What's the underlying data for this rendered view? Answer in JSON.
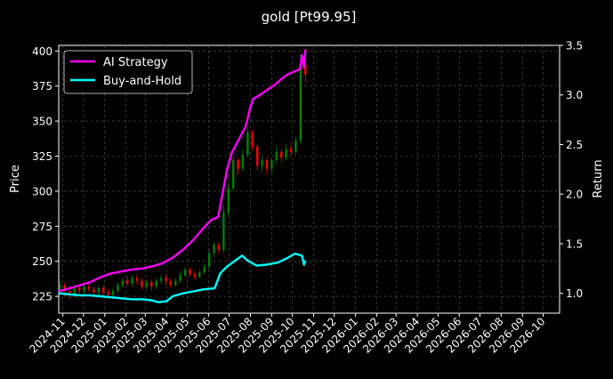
{
  "chart_data": {
    "type": "line",
    "title": "gold [Pt99.95]",
    "xlabel": "",
    "ylabel": "Price",
    "y2label": "Return",
    "grid": true,
    "legend_position": "top-left",
    "ylim": [
      213,
      404
    ],
    "y2lim": [
      0.8,
      3.5
    ],
    "x_range": [
      "2024-10-26",
      "2026-10-25"
    ],
    "y_ticks": [
      "225",
      "250",
      "275",
      "300",
      "325",
      "350",
      "375",
      "400"
    ],
    "y2_ticks": [
      "1.0",
      "1.5",
      "2.0",
      "2.5",
      "3.0",
      "3.5"
    ],
    "x_ticks": [
      "2024-11",
      "2024-12",
      "2025-01",
      "2025-02",
      "2025-03",
      "2025-04",
      "2025-05",
      "2025-06",
      "2025-07",
      "2025-08",
      "2025-09",
      "2025-10",
      "2025-11",
      "2025-12",
      "2026-01",
      "2026-02",
      "2026-03",
      "2026-04",
      "2026-05",
      "2026-06",
      "2026-07",
      "2026-08",
      "2026-09",
      "2026-10"
    ],
    "colors": {
      "ai": "#ff00ff",
      "bh": "#00ffff",
      "up": "#008000",
      "down": "#ff0000"
    },
    "series": [
      {
        "name": "AI Strategy",
        "axis": "right",
        "color": "#ff00ff",
        "points": [
          [
            "2024-10-26",
            1.02
          ],
          [
            "2024-11-10",
            1.05
          ],
          [
            "2024-11-25",
            1.08
          ],
          [
            "2024-12-10",
            1.11
          ],
          [
            "2024-12-25",
            1.16
          ],
          [
            "2025-01-10",
            1.2
          ],
          [
            "2025-01-25",
            1.22
          ],
          [
            "2025-02-10",
            1.24
          ],
          [
            "2025-02-25",
            1.25
          ],
          [
            "2025-03-10",
            1.27
          ],
          [
            "2025-03-25",
            1.3
          ],
          [
            "2025-04-10",
            1.36
          ],
          [
            "2025-04-25",
            1.44
          ],
          [
            "2025-05-10",
            1.54
          ],
          [
            "2025-05-25",
            1.66
          ],
          [
            "2025-06-05",
            1.74
          ],
          [
            "2025-06-15",
            1.77
          ],
          [
            "2025-06-20",
            1.95
          ],
          [
            "2025-06-28",
            2.25
          ],
          [
            "2025-07-05",
            2.42
          ],
          [
            "2025-07-15",
            2.55
          ],
          [
            "2025-07-25",
            2.68
          ],
          [
            "2025-08-01",
            2.88
          ],
          [
            "2025-08-05",
            2.96
          ],
          [
            "2025-08-15",
            3.0
          ],
          [
            "2025-08-25",
            3.05
          ],
          [
            "2025-09-05",
            3.1
          ],
          [
            "2025-09-15",
            3.16
          ],
          [
            "2025-09-25",
            3.21
          ],
          [
            "2025-10-05",
            3.24
          ],
          [
            "2025-10-12",
            3.26
          ],
          [
            "2025-10-15",
            3.4
          ],
          [
            "2025-10-18",
            3.28
          ],
          [
            "2025-10-20",
            3.46
          ]
        ]
      },
      {
        "name": "Buy-and-Hold",
        "axis": "right",
        "color": "#00ffff",
        "points": [
          [
            "2024-10-26",
            1.0
          ],
          [
            "2024-11-10",
            0.99
          ],
          [
            "2024-11-25",
            0.98
          ],
          [
            "2024-12-10",
            0.98
          ],
          [
            "2024-12-25",
            0.97
          ],
          [
            "2025-01-10",
            0.96
          ],
          [
            "2025-01-25",
            0.95
          ],
          [
            "2025-02-10",
            0.94
          ],
          [
            "2025-02-25",
            0.94
          ],
          [
            "2025-03-10",
            0.93
          ],
          [
            "2025-03-20",
            0.91
          ],
          [
            "2025-04-01",
            0.92
          ],
          [
            "2025-04-10",
            0.97
          ],
          [
            "2025-04-25",
            1.0
          ],
          [
            "2025-05-10",
            1.02
          ],
          [
            "2025-05-25",
            1.04
          ],
          [
            "2025-06-10",
            1.05
          ],
          [
            "2025-06-18",
            1.2
          ],
          [
            "2025-06-28",
            1.27
          ],
          [
            "2025-07-10",
            1.33
          ],
          [
            "2025-07-20",
            1.38
          ],
          [
            "2025-07-28",
            1.33
          ],
          [
            "2025-08-10",
            1.28
          ],
          [
            "2025-08-25",
            1.29
          ],
          [
            "2025-09-10",
            1.31
          ],
          [
            "2025-09-25",
            1.36
          ],
          [
            "2025-10-05",
            1.4
          ],
          [
            "2025-10-15",
            1.38
          ],
          [
            "2025-10-18",
            1.29
          ],
          [
            "2025-10-20",
            1.33
          ]
        ]
      }
    ],
    "candles": [
      [
        "2024-10-28",
        230,
        233,
        227,
        236
      ],
      [
        "2024-11-04",
        233,
        229,
        225,
        235
      ],
      [
        "2024-11-11",
        229,
        226,
        223,
        232
      ],
      [
        "2024-11-18",
        226,
        231,
        224,
        233
      ],
      [
        "2024-11-25",
        231,
        229,
        226,
        233
      ],
      [
        "2024-12-02",
        229,
        232,
        227,
        234
      ],
      [
        "2024-12-09",
        232,
        230,
        228,
        235
      ],
      [
        "2024-12-16",
        230,
        228,
        226,
        232
      ],
      [
        "2024-12-23",
        228,
        231,
        226,
        233
      ],
      [
        "2024-12-30",
        231,
        228,
        225,
        233
      ],
      [
        "2025-01-06",
        228,
        226,
        224,
        230
      ],
      [
        "2025-01-13",
        226,
        229,
        224,
        231
      ],
      [
        "2025-01-20",
        229,
        233,
        227,
        235
      ],
      [
        "2025-01-27",
        233,
        236,
        231,
        238
      ],
      [
        "2025-02-03",
        236,
        234,
        232,
        239
      ],
      [
        "2025-02-10",
        234,
        238,
        232,
        240
      ],
      [
        "2025-02-17",
        238,
        236,
        233,
        241
      ],
      [
        "2025-02-24",
        236,
        232,
        230,
        238
      ],
      [
        "2025-03-03",
        232,
        235,
        230,
        237
      ],
      [
        "2025-03-10",
        235,
        232,
        229,
        237
      ],
      [
        "2025-03-17",
        232,
        236,
        230,
        238
      ],
      [
        "2025-03-24",
        236,
        238,
        234,
        241
      ],
      [
        "2025-03-31",
        238,
        236,
        233,
        241
      ],
      [
        "2025-04-07",
        236,
        233,
        231,
        238
      ],
      [
        "2025-04-14",
        233,
        236,
        232,
        238
      ],
      [
        "2025-04-21",
        236,
        240,
        235,
        243
      ],
      [
        "2025-04-28",
        240,
        244,
        239,
        246
      ],
      [
        "2025-05-05",
        244,
        241,
        239,
        246
      ],
      [
        "2025-05-12",
        241,
        239,
        237,
        243
      ],
      [
        "2025-05-19",
        239,
        242,
        238,
        244
      ],
      [
        "2025-05-26",
        242,
        246,
        241,
        248
      ],
      [
        "2025-06-02",
        246,
        256,
        244,
        258
      ],
      [
        "2025-06-09",
        256,
        262,
        253,
        264
      ],
      [
        "2025-06-16",
        262,
        258,
        255,
        264
      ],
      [
        "2025-06-23",
        258,
        285,
        256,
        290
      ],
      [
        "2025-06-30",
        285,
        302,
        282,
        306
      ],
      [
        "2025-07-07",
        302,
        322,
        300,
        326
      ],
      [
        "2025-07-14",
        322,
        316,
        312,
        324
      ],
      [
        "2025-07-21",
        316,
        326,
        314,
        330
      ],
      [
        "2025-07-28",
        326,
        342,
        324,
        345
      ],
      [
        "2025-08-04",
        342,
        332,
        329,
        344
      ],
      [
        "2025-08-11",
        332,
        318,
        315,
        334
      ],
      [
        "2025-08-18",
        318,
        322,
        314,
        325
      ],
      [
        "2025-08-25",
        322,
        316,
        312,
        324
      ],
      [
        "2025-09-01",
        316,
        322,
        313,
        324
      ],
      [
        "2025-09-08",
        322,
        328,
        320,
        332
      ],
      [
        "2025-09-15",
        328,
        324,
        321,
        330
      ],
      [
        "2025-09-22",
        324,
        330,
        322,
        334
      ],
      [
        "2025-09-29",
        330,
        328,
        325,
        333
      ],
      [
        "2025-10-06",
        328,
        336,
        326,
        339
      ],
      [
        "2025-10-13",
        336,
        390,
        334,
        398
      ],
      [
        "2025-10-20",
        390,
        383,
        378,
        395
      ]
    ]
  },
  "legend": {
    "items": [
      {
        "label": "AI Strategy",
        "color": "#ff00ff"
      },
      {
        "label": "Buy-and-Hold",
        "color": "#00ffff"
      }
    ]
  }
}
